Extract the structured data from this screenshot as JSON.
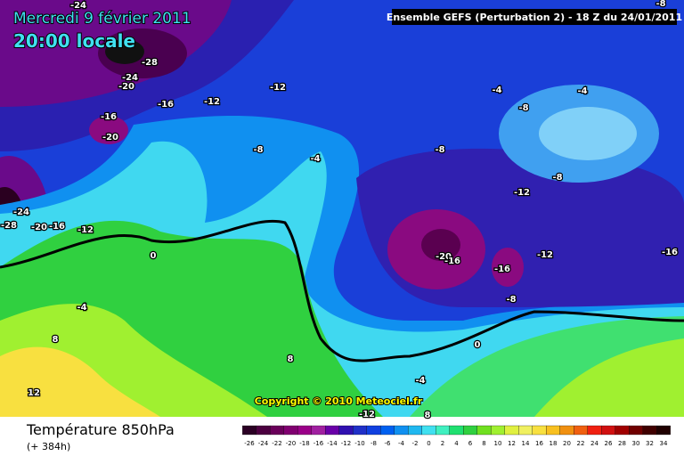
{
  "header": {
    "date": "Mercredi 9 février 2011",
    "time": "20:00 locale",
    "model": "Ensemble GEFS (Perturbation 2)  -  18 Z du 24/01/2011"
  },
  "copyright": "Copyright © 2010 Meteociel.fr",
  "footer": {
    "title": "Température 850hPa",
    "lead": "(+ 384h)"
  },
  "scale": [
    -26,
    -24,
    -22,
    -20,
    -18,
    -16,
    -14,
    -12,
    -10,
    -8,
    -6,
    -4,
    -2,
    0,
    2,
    4,
    6,
    8,
    10,
    12,
    14,
    16,
    18,
    20,
    22,
    24,
    26,
    28,
    30,
    32,
    34
  ],
  "contour_labels": [
    -24,
    -28,
    -24,
    -20,
    -16,
    -12,
    -12,
    -16,
    -20,
    -8,
    -4,
    -4,
    -4,
    -8,
    -8,
    -8,
    -12,
    -24,
    -28,
    -20,
    -16,
    -12,
    0,
    -20,
    -16,
    -16,
    -12,
    -16,
    -8,
    -4,
    8,
    0,
    8,
    -4,
    12,
    -12,
    8,
    -8
  ]
}
